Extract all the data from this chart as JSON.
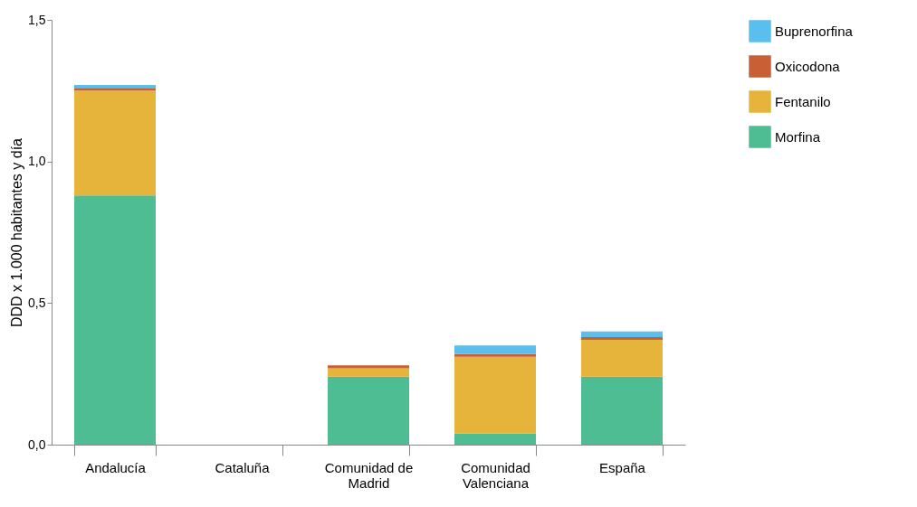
{
  "chart_data": {
    "type": "bar",
    "stacked": true,
    "ylabel": "DDD x 1.000 habitantes y día",
    "categories": [
      "Andalucía",
      "Cataluña",
      "Comunidad de Madrid",
      "Comunidad Valenciana",
      "España"
    ],
    "series": [
      {
        "name": "Morfina",
        "color": "#4fbd93",
        "values": [
          0.88,
          null,
          0.24,
          0.04,
          0.24
        ]
      },
      {
        "name": "Fentanilo",
        "color": "#e7b43b",
        "values": [
          0.37,
          null,
          0.03,
          0.27,
          0.13
        ]
      },
      {
        "name": "Oxicodona",
        "color": "#c95f34",
        "values": [
          0.01,
          null,
          0.01,
          0.01,
          0.01
        ]
      },
      {
        "name": "Buprenorfina",
        "color": "#5bbfee",
        "values": [
          0.01,
          null,
          null,
          0.03,
          0.02
        ]
      }
    ],
    "ylim": [
      0,
      1.5
    ],
    "yticks": [
      {
        "value": 0,
        "label": "0,0"
      },
      {
        "value": 0.5,
        "label": "0,5"
      },
      {
        "value": 1,
        "label": "1,0"
      },
      {
        "value": 1.5,
        "label": "1,5"
      }
    ],
    "grid": false,
    "legend": "top right"
  }
}
